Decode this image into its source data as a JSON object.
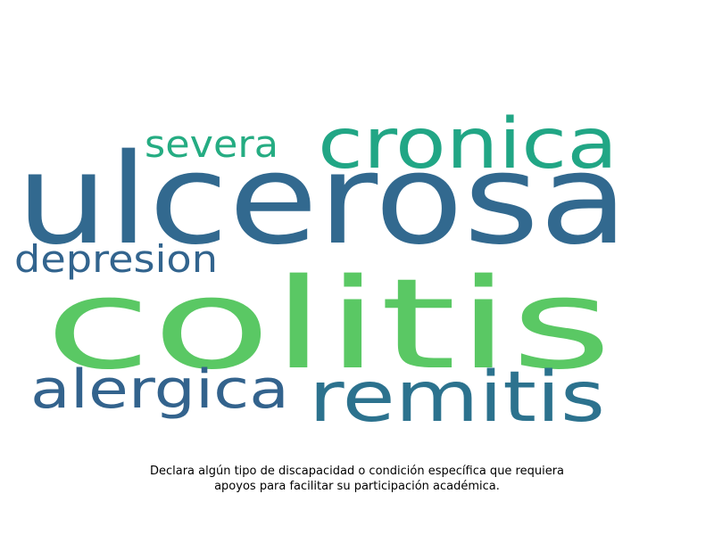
{
  "words": [
    {
      "text": "ulcerosa",
      "color": "#32698f"
    },
    {
      "text": "colitis",
      "color": "#5ac864"
    },
    {
      "text": "cronica",
      "color": "#21a685"
    },
    {
      "text": "remitis",
      "color": "#2c728e"
    },
    {
      "text": "alergica",
      "color": "#33638d"
    },
    {
      "text": "severa",
      "color": "#25ac82"
    },
    {
      "text": "depresion",
      "color": "#32648e"
    }
  ],
  "caption": "Declara algún tipo de discapacidad o condición específica que requiera apoyos para facilitar su participación académica."
}
